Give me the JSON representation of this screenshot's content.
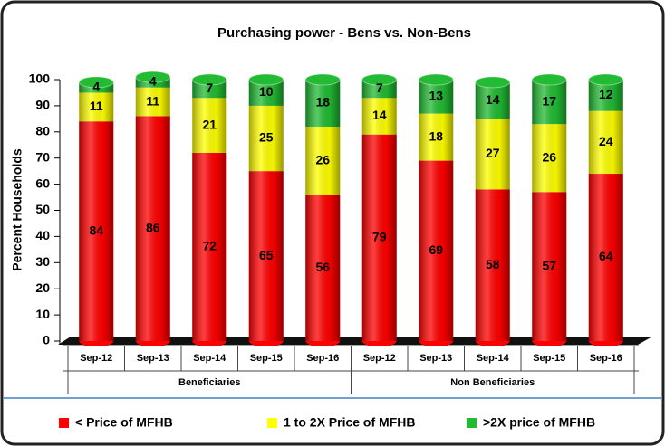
{
  "chart_data": {
    "type": "stacked-bar",
    "title": "Purchasing power - Bens vs. Non-Bens",
    "y_label": "Percent Households",
    "categories": [
      "Sep-12",
      "Sep-13",
      "Sep-14",
      "Sep-15",
      "Sep-16",
      "Sep-12",
      "Sep-13",
      "Sep-14",
      "Sep-15",
      "Sep-16"
    ],
    "groups": [
      "Beneficiaries",
      "Non Beneficiaries"
    ],
    "series": [
      {
        "name": "< Price of MFHB",
        "color": "#ff0000",
        "values": [
          84,
          86,
          72,
          65,
          56,
          79,
          69,
          58,
          57,
          64
        ]
      },
      {
        "name": "1 to 2X Price of MFHB",
        "color": "#ffff00",
        "values": [
          11,
          11,
          21,
          25,
          26,
          14,
          18,
          27,
          26,
          24
        ]
      },
      {
        "name": ">2X price of MFHB",
        "color": "#22bb33",
        "values": [
          4,
          4,
          7,
          10,
          18,
          7,
          13,
          14,
          17,
          12
        ]
      }
    ],
    "ylim": [
      0,
      100
    ],
    "yticks": [
      0,
      10,
      20,
      30,
      40,
      50,
      60,
      70,
      80,
      90,
      100
    ],
    "grid": false,
    "legend": "bottom"
  }
}
